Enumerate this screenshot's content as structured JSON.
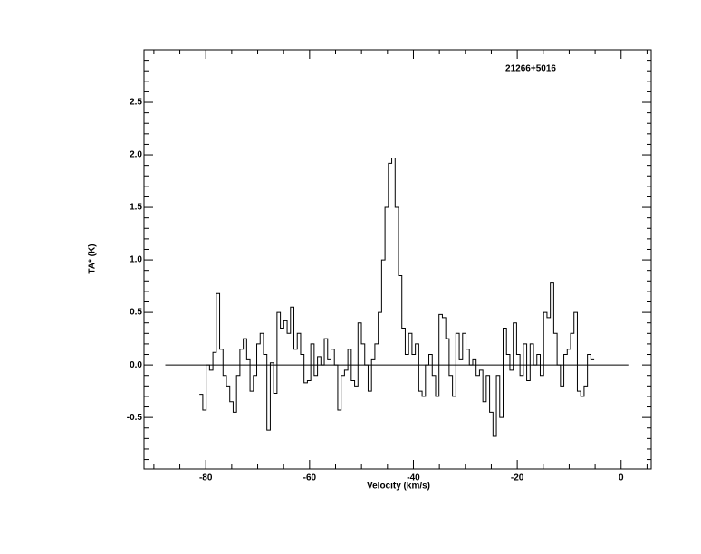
{
  "chart_data": {
    "type": "step",
    "xlabel": "Velocity (km/s)",
    "ylabel": "TA* (K)",
    "annotation": "21266+5016",
    "xlim": [
      -91.9,
      5.8
    ],
    "ylim": [
      -0.99,
      3.0
    ],
    "xticks": [
      -80,
      -60,
      -40,
      -20,
      0
    ],
    "yticks": [
      -0.5,
      {
        "value": 0,
        "label": "0.0"
      },
      0.5,
      {
        "value": 1,
        "label": "1.0"
      },
      1.5,
      {
        "value": 2,
        "label": "2.0"
      },
      2.5
    ],
    "xminor": [
      -90,
      -85,
      -75,
      -70,
      -65,
      -55,
      -50,
      -45,
      -35,
      -30,
      -25,
      -15,
      -10,
      -5,
      5
    ],
    "yminor": [
      -0.9,
      -0.8,
      -0.7,
      -0.6,
      -0.4,
      -0.3,
      -0.2,
      -0.1,
      0.1,
      0.2,
      0.3,
      0.4,
      0.6,
      0.7,
      0.8,
      0.9,
      1.1,
      1.2,
      1.3,
      1.4,
      1.6,
      1.7,
      1.8,
      1.9,
      2.1,
      2.2,
      2.3,
      2.4,
      2.6,
      2.7,
      2.8,
      2.9
    ],
    "baseline": {
      "x": [
        -87.8,
        1.4
      ],
      "y": 0
    },
    "color": "#000000",
    "x": [
      -80.9,
      -80.25,
      -79.6,
      -78.95,
      -78.3,
      -77.65,
      -77.0,
      -76.35,
      -75.7,
      -75.05,
      -74.4,
      -73.75,
      -73.1,
      -72.45,
      -71.8,
      -71.15,
      -70.5,
      -69.85,
      -69.2,
      -68.55,
      -67.9,
      -67.25,
      -66.6,
      -65.95,
      -65.3,
      -64.65,
      -64.0,
      -63.35,
      -62.7,
      -62.05,
      -61.4,
      -60.75,
      -60.1,
      -59.45,
      -58.8,
      -58.15,
      -57.5,
      -56.85,
      -56.2,
      -55.55,
      -54.9,
      -54.25,
      -53.6,
      -52.95,
      -52.3,
      -51.65,
      -51.0,
      -50.35,
      -49.7,
      -49.05,
      -48.4,
      -47.75,
      -47.1,
      -46.45,
      -45.8,
      -45.15,
      -44.5,
      -43.85,
      -43.2,
      -42.55,
      -41.9,
      -41.25,
      -40.6,
      -39.95,
      -39.3,
      -38.65,
      -38.0,
      -37.35,
      -36.7,
      -36.05,
      -35.4,
      -34.75,
      -34.1,
      -33.45,
      -32.8,
      -32.15,
      -31.5,
      -30.85,
      -30.2,
      -29.55,
      -28.9,
      -28.25,
      -27.6,
      -26.95,
      -26.3,
      -25.65,
      -25.0,
      -24.35,
      -23.7,
      -23.05,
      -22.4,
      -21.75,
      -21.1,
      -20.45,
      -19.8,
      -19.15,
      -18.5,
      -17.85,
      -17.2,
      -16.55,
      -15.9,
      -15.25,
      -14.6,
      -13.95,
      -13.3,
      -12.65,
      -12.0,
      -11.35,
      -10.7,
      -10.05,
      -9.4,
      -8.75,
      -8.1,
      -7.45,
      -6.8,
      -6.15,
      -5.5
    ],
    "values": [
      -0.28,
      -0.43,
      0.0,
      -0.05,
      0.12,
      0.68,
      0.15,
      -0.1,
      -0.2,
      -0.35,
      -0.45,
      -0.1,
      0.15,
      0.25,
      0.05,
      -0.25,
      -0.1,
      0.2,
      0.3,
      0.1,
      -0.62,
      0.02,
      -0.27,
      0.5,
      0.35,
      0.42,
      0.3,
      0.55,
      0.15,
      0.3,
      0.1,
      -0.17,
      -0.15,
      0.2,
      -0.1,
      0.08,
      0.0,
      0.25,
      0.05,
      0.15,
      0.0,
      -0.43,
      -0.1,
      -0.05,
      0.15,
      -0.15,
      -0.2,
      0.4,
      0.2,
      0.0,
      -0.25,
      0.05,
      0.2,
      0.5,
      1.0,
      1.5,
      1.92,
      1.97,
      1.5,
      0.85,
      0.35,
      0.1,
      0.3,
      0.1,
      0.2,
      -0.25,
      -0.3,
      0.0,
      0.1,
      -0.1,
      -0.3,
      0.48,
      0.45,
      0.25,
      -0.1,
      -0.3,
      0.3,
      0.05,
      0.3,
      0.15,
      0.0,
      0.05,
      -0.1,
      -0.05,
      -0.35,
      -0.1,
      -0.45,
      -0.68,
      -0.1,
      -0.5,
      0.35,
      0.1,
      -0.05,
      0.4,
      0.1,
      -0.1,
      0.2,
      -0.15,
      0.2,
      0.0,
      0.1,
      -0.1,
      0.5,
      0.45,
      0.78,
      0.3,
      0.0,
      -0.2,
      0.1,
      0.15,
      0.3,
      0.5,
      -0.25,
      -0.3,
      -0.2,
      0.1,
      0.05
    ]
  }
}
